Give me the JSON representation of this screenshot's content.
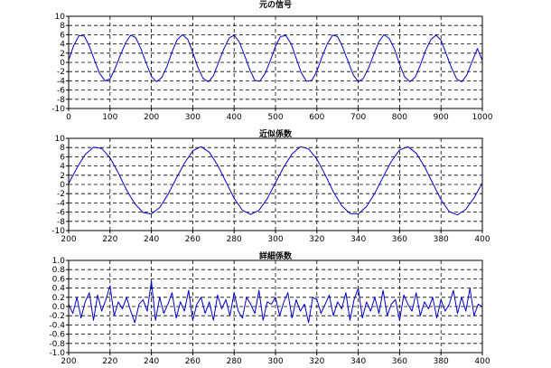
{
  "chart_data": [
    {
      "type": "line",
      "title": "元の信号",
      "xlim": [
        0,
        1000
      ],
      "ylim": [
        -10,
        10
      ],
      "xticks": [
        0,
        100,
        200,
        300,
        400,
        500,
        600,
        700,
        800,
        900,
        1000
      ],
      "yticks": [
        -10,
        -8,
        -6,
        -4,
        -2,
        0,
        2,
        4,
        6,
        8,
        10
      ],
      "grid": true,
      "line_color": "#0000cc",
      "series": [
        {
          "x": [
            0,
            12,
            25,
            38,
            50,
            62,
            75,
            88,
            100,
            112,
            125,
            138,
            150,
            162,
            175,
            188,
            200,
            212,
            225,
            238,
            250,
            262,
            275,
            288,
            300,
            312,
            325,
            338,
            350,
            362,
            375,
            388,
            400,
            412,
            425,
            438,
            450,
            462,
            475,
            488,
            500,
            512,
            525,
            538,
            550,
            562,
            575,
            588,
            600,
            612,
            625,
            638,
            650,
            662,
            675,
            688,
            700,
            712,
            725,
            738,
            750,
            762,
            775,
            788,
            800,
            812,
            825,
            838,
            850,
            862,
            875,
            888,
            900,
            912,
            925,
            938,
            950,
            962,
            975,
            988,
            1000
          ],
          "y": [
            0.5,
            3.6,
            5.8,
            5.7,
            3.5,
            0.6,
            -2.4,
            -4.0,
            -3.6,
            -1.4,
            1.6,
            4.3,
            5.9,
            5.4,
            2.9,
            -0.3,
            -3.0,
            -4.2,
            -3.3,
            -0.8,
            2.3,
            4.9,
            6.0,
            5.0,
            2.2,
            -1.0,
            -3.5,
            -4.2,
            -2.9,
            -0.1,
            2.9,
            5.3,
            5.9,
            4.5,
            1.6,
            -1.6,
            -3.9,
            -4.1,
            -2.4,
            0.5,
            3.5,
            5.6,
            5.8,
            4.0,
            0.9,
            -2.2,
            -4.1,
            -3.9,
            -1.9,
            1.1,
            4.0,
            5.9,
            5.6,
            3.4,
            0.3,
            -2.7,
            -4.2,
            -3.5,
            -1.2,
            1.8,
            4.5,
            6.0,
            5.2,
            2.8,
            -0.4,
            -3.1,
            -4.2,
            -3.2,
            -0.6,
            2.4,
            4.9,
            5.9,
            4.8,
            2.0,
            -1.1,
            -3.6,
            -4.2,
            -2.8,
            0.1,
            3.0,
            0.4
          ]
        }
      ]
    },
    {
      "type": "line",
      "title": "近似係数",
      "xlim": [
        200,
        400
      ],
      "ylim": [
        -10,
        10
      ],
      "xticks": [
        200,
        220,
        240,
        260,
        280,
        300,
        320,
        340,
        360,
        380,
        400
      ],
      "yticks": [
        -10,
        -8,
        -6,
        -4,
        -2,
        0,
        2,
        4,
        6,
        8,
        10
      ],
      "grid": true,
      "line_color": "#0000cc",
      "series": [
        {
          "x": [
            200,
            204,
            208,
            212,
            216,
            220,
            224,
            228,
            232,
            236,
            240,
            244,
            248,
            252,
            256,
            260,
            264,
            268,
            272,
            276,
            280,
            284,
            288,
            292,
            296,
            300,
            304,
            308,
            312,
            316,
            320,
            324,
            328,
            332,
            336,
            340,
            344,
            348,
            352,
            356,
            360,
            364,
            368,
            372,
            376,
            380,
            384,
            388,
            392,
            396,
            400
          ],
          "y": [
            0.2,
            3.6,
            6.5,
            8.1,
            7.8,
            5.8,
            2.5,
            -1.2,
            -4.2,
            -6.1,
            -6.4,
            -5.0,
            -2.2,
            1.3,
            4.6,
            7.3,
            8.2,
            7.0,
            4.2,
            0.6,
            -3.0,
            -5.6,
            -6.5,
            -5.6,
            -3.1,
            0.4,
            3.8,
            6.6,
            8.2,
            7.7,
            5.5,
            2.1,
            -1.6,
            -4.6,
            -6.3,
            -6.4,
            -4.8,
            -1.9,
            1.6,
            5.0,
            7.5,
            8.2,
            6.8,
            3.9,
            0.3,
            -3.3,
            -5.9,
            -6.6,
            -5.4,
            -2.9,
            0.3
          ]
        }
      ]
    },
    {
      "type": "line",
      "title": "詳細係数",
      "xlim": [
        200,
        400
      ],
      "ylim": [
        -1.0,
        1.0
      ],
      "xticks": [
        200,
        220,
        240,
        260,
        280,
        300,
        320,
        340,
        360,
        380,
        400
      ],
      "yticks": [
        "-1.0",
        "-0.8",
        "-0.6",
        "-0.4",
        "-0.2",
        "0.0",
        "0.2",
        "0.4",
        "0.6",
        "0.8",
        "1.0"
      ],
      "grid": true,
      "line_color": "#0000cc",
      "series": [
        {
          "x": [
            200,
            202,
            204,
            206,
            208,
            210,
            212,
            214,
            216,
            218,
            220,
            222,
            224,
            226,
            228,
            230,
            232,
            234,
            236,
            238,
            240,
            242,
            244,
            246,
            248,
            250,
            252,
            254,
            256,
            258,
            260,
            262,
            264,
            266,
            268,
            270,
            272,
            274,
            276,
            278,
            280,
            282,
            284,
            286,
            288,
            290,
            292,
            294,
            296,
            298,
            300,
            302,
            304,
            306,
            308,
            310,
            312,
            314,
            316,
            318,
            320,
            322,
            324,
            326,
            328,
            330,
            332,
            334,
            336,
            338,
            340,
            342,
            344,
            346,
            348,
            350,
            352,
            354,
            356,
            358,
            360,
            362,
            364,
            366,
            368,
            370,
            372,
            374,
            376,
            378,
            380,
            382,
            384,
            386,
            388,
            390,
            392,
            394,
            396,
            398,
            400
          ],
          "y": [
            0.05,
            -0.15,
            0.2,
            -0.25,
            0.1,
            0.3,
            -0.3,
            0.25,
            -0.1,
            0.15,
            0.45,
            -0.2,
            0.1,
            -0.05,
            0.2,
            -0.1,
            -0.35,
            0.05,
            0.15,
            -0.1,
            0.55,
            -0.3,
            0.2,
            -0.15,
            0.05,
            0.3,
            -0.25,
            0.1,
            -0.1,
            0.35,
            -0.3,
            0.05,
            0.2,
            -0.15,
            0.1,
            -0.3,
            0.25,
            -0.05,
            0.15,
            -0.2,
            0.3,
            -0.1,
            -0.25,
            0.2,
            0.05,
            -0.15,
            0.35,
            -0.3,
            0.1,
            0.05,
            0.2,
            -0.2,
            0.1,
            0.3,
            -0.25,
            0.15,
            -0.1,
            0.05,
            -0.35,
            0.2,
            0.15,
            -0.15,
            0.05,
            0.25,
            -0.2,
            0.1,
            -0.05,
            0.3,
            -0.3,
            0.15,
            0.4,
            -0.25,
            0.1,
            -0.1,
            0.2,
            -0.15,
            0.35,
            -0.2,
            0.05,
            0.15,
            -0.3,
            0.25,
            0.05,
            -0.1,
            0.3,
            -0.2,
            0.1,
            -0.05,
            0.2,
            -0.25,
            0.15,
            -0.1,
            0.05,
            0.35,
            -0.15,
            0.2,
            -0.1,
            0.4,
            -0.2,
            0.05,
            0.0
          ]
        }
      ]
    }
  ]
}
